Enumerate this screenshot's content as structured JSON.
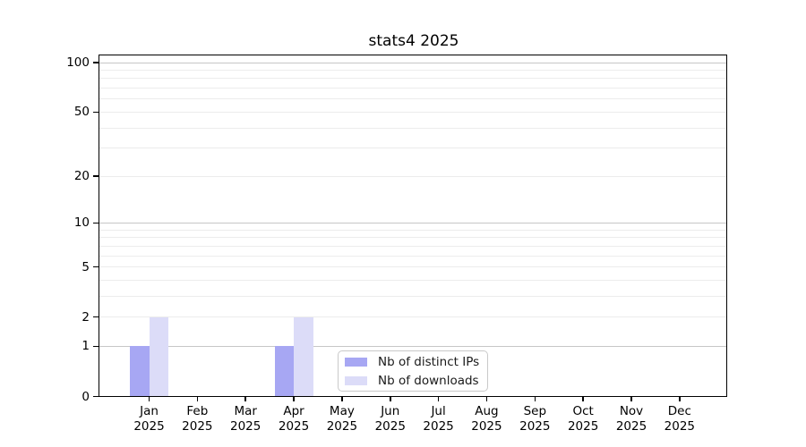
{
  "chart_data": {
    "type": "bar",
    "title": "stats4 2025",
    "categories": [
      "Jan",
      "Feb",
      "Mar",
      "Apr",
      "May",
      "Jun",
      "Jul",
      "Aug",
      "Sep",
      "Oct",
      "Nov",
      "Dec"
    ],
    "category_year": "2025",
    "series": [
      {
        "name": "Nb of distinct IPs",
        "color": "#A7A7F3",
        "values": [
          1,
          0,
          0,
          1,
          0,
          0,
          0,
          0,
          0,
          0,
          0,
          0
        ]
      },
      {
        "name": "Nb of downloads",
        "color": "#DCDCF8",
        "values": [
          2,
          0,
          0,
          2,
          0,
          0,
          0,
          0,
          0,
          0,
          0,
          0
        ]
      }
    ],
    "yscale": "log1p",
    "yticks": [
      0,
      1,
      2,
      5,
      10,
      20,
      50,
      100
    ],
    "ylim": [
      0,
      112
    ],
    "grid": {
      "major_values": [
        1,
        10,
        100
      ],
      "minor_values": [
        2,
        3,
        4,
        5,
        6,
        7,
        8,
        9,
        20,
        30,
        40,
        50,
        60,
        70,
        80,
        90
      ],
      "major_color": "#C6C6C6",
      "minor_color": "#ECECEC"
    },
    "legend_position": "inside lower center",
    "axis_color": "#000000",
    "background_color": "#FFFFFF"
  }
}
